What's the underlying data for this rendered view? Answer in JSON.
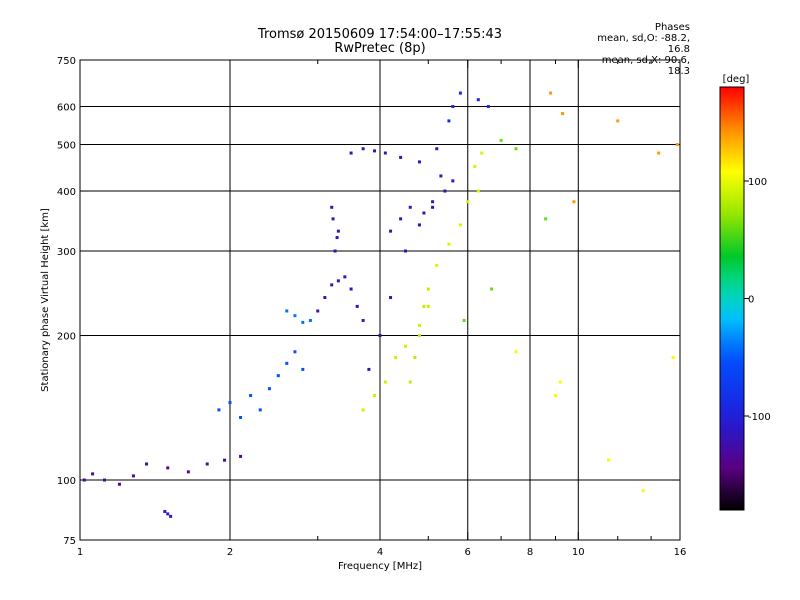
{
  "chart_data": {
    "type": "scatter",
    "title_line1": "Tromsø 20150609 17:54:00–17:55:43",
    "title_line2": "RwPretec (8p)",
    "phases": {
      "heading": "Phases",
      "line_o": "mean, sd,O: -88.2, 16.8",
      "line_x": "mean, sd,X:  90.6, 18.3"
    },
    "xlabel": "Frequency [MHz]",
    "ylabel": "Stationary phase Virtual Height [km]",
    "x_scale": "log",
    "y_scale": "log",
    "xlim": [
      1,
      16
    ],
    "ylim": [
      75,
      750
    ],
    "x_ticks": [
      {
        "v": 1,
        "label": "1"
      },
      {
        "v": 2,
        "label": "2"
      },
      {
        "v": 4,
        "label": "4"
      },
      {
        "v": 6,
        "label": "6"
      },
      {
        "v": 8,
        "label": "8"
      },
      {
        "v": 10,
        "label": "10"
      },
      {
        "v": 16,
        "label": "16"
      }
    ],
    "x_grid_major": [
      2,
      4,
      6,
      8,
      10
    ],
    "x_minor_ticks": [
      3,
      5,
      7,
      9,
      12,
      14
    ],
    "y_ticks": [
      {
        "v": 75,
        "label": "75"
      },
      {
        "v": 100,
        "label": "100"
      },
      {
        "v": 200,
        "label": "200"
      },
      {
        "v": 300,
        "label": "300"
      },
      {
        "v": 400,
        "label": "400"
      },
      {
        "v": 500,
        "label": "500"
      },
      {
        "v": 600,
        "label": "600"
      },
      {
        "v": 750,
        "label": "750"
      }
    ],
    "y_grid": [
      100,
      200,
      300,
      400,
      500,
      600
    ],
    "colorbar": {
      "label": "[deg]",
      "range": [
        -180,
        180
      ],
      "ticks": [
        {
          "v": 100,
          "label": "100"
        },
        {
          "v": 0,
          "label": "0"
        },
        {
          "v": -100,
          "label": "-100"
        }
      ]
    },
    "series": [
      {
        "points": [
          [
            1.02,
            100
          ],
          [
            1.06,
            103
          ],
          [
            1.12,
            100
          ],
          [
            1.2,
            98
          ],
          [
            1.28,
            102
          ],
          [
            1.36,
            108
          ],
          [
            1.5,
            106
          ],
          [
            1.65,
            104
          ],
          [
            1.8,
            108
          ],
          [
            1.95,
            110
          ],
          [
            2.1,
            112
          ]
        ],
        "phase": -130
      },
      {
        "points": [
          [
            1.5,
            85
          ],
          [
            1.48,
            86
          ],
          [
            1.52,
            84
          ]
        ],
        "phase": -110
      },
      {
        "points": [
          [
            1.9,
            140
          ],
          [
            2.0,
            145
          ],
          [
            2.1,
            135
          ],
          [
            2.2,
            150
          ],
          [
            2.3,
            140
          ],
          [
            2.4,
            155
          ],
          [
            2.5,
            165
          ],
          [
            2.6,
            175
          ],
          [
            2.7,
            185
          ],
          [
            2.8,
            170
          ]
        ],
        "phase": -50
      },
      {
        "points": [
          [
            2.6,
            225
          ],
          [
            2.7,
            220
          ],
          [
            2.8,
            213
          ],
          [
            2.9,
            215
          ]
        ],
        "phase": -40
      },
      {
        "points": [
          [
            3.0,
            225
          ],
          [
            3.1,
            240
          ],
          [
            3.2,
            255
          ],
          [
            3.3,
            260
          ],
          [
            3.4,
            265
          ],
          [
            3.5,
            250
          ],
          [
            3.6,
            230
          ],
          [
            3.7,
            215
          ]
        ],
        "phase": -120
      },
      {
        "points": [
          [
            3.25,
            300
          ],
          [
            3.3,
            330
          ],
          [
            3.2,
            370
          ],
          [
            3.22,
            350
          ],
          [
            3.28,
            320
          ]
        ],
        "phase": -120
      },
      {
        "points": [
          [
            3.5,
            480
          ],
          [
            3.7,
            490
          ],
          [
            3.9,
            485
          ],
          [
            4.1,
            480
          ],
          [
            4.4,
            470
          ],
          [
            4.8,
            460
          ],
          [
            5.2,
            490
          ]
        ],
        "phase": -120
      },
      {
        "points": [
          [
            3.8,
            170
          ],
          [
            4.0,
            200
          ],
          [
            4.2,
            240
          ],
          [
            4.5,
            300
          ],
          [
            4.8,
            340
          ],
          [
            5.1,
            370
          ],
          [
            5.4,
            400
          ],
          [
            5.6,
            420
          ]
        ],
        "phase": -120
      },
      {
        "points": [
          [
            4.2,
            330
          ],
          [
            4.4,
            350
          ],
          [
            4.6,
            370
          ],
          [
            4.9,
            360
          ],
          [
            5.1,
            380
          ],
          [
            5.3,
            430
          ]
        ],
        "phase": -120
      },
      {
        "points": [
          [
            5.5,
            560
          ],
          [
            5.6,
            600
          ],
          [
            5.8,
            640
          ],
          [
            6.3,
            620
          ],
          [
            6.6,
            600
          ]
        ],
        "phase": -90
      },
      {
        "points": [
          [
            3.7,
            140
          ],
          [
            3.9,
            150
          ],
          [
            4.1,
            160
          ],
          [
            4.3,
            180
          ],
          [
            4.5,
            190
          ],
          [
            4.8,
            210
          ],
          [
            5.0,
            230
          ]
        ],
        "phase": 90
      },
      {
        "points": [
          [
            5.2,
            280
          ],
          [
            5.5,
            310
          ],
          [
            5.8,
            340
          ],
          [
            6.0,
            380
          ],
          [
            6.2,
            450
          ],
          [
            6.3,
            400
          ],
          [
            6.4,
            480
          ]
        ],
        "phase": 95
      },
      {
        "points": [
          [
            4.6,
            160
          ],
          [
            4.7,
            180
          ],
          [
            4.8,
            200
          ],
          [
            4.9,
            230
          ],
          [
            5.0,
            250
          ]
        ],
        "phase": 85
      },
      {
        "points": [
          [
            7.5,
            185
          ],
          [
            9.0,
            150
          ],
          [
            9.2,
            160
          ],
          [
            11.5,
            110
          ],
          [
            13.5,
            95
          ],
          [
            15.5,
            180
          ]
        ],
        "phase": 110
      },
      {
        "points": [
          [
            8.8,
            640
          ],
          [
            9.3,
            580
          ],
          [
            12.0,
            560
          ],
          [
            14.5,
            480
          ],
          [
            15.8,
            500
          ],
          [
            9.8,
            380
          ]
        ],
        "phase": 140
      },
      {
        "points": [
          [
            5.9,
            215
          ],
          [
            6.7,
            250
          ],
          [
            8.6,
            350
          ],
          [
            7.0,
            510
          ],
          [
            7.5,
            490
          ]
        ],
        "phase": 60
      }
    ]
  }
}
